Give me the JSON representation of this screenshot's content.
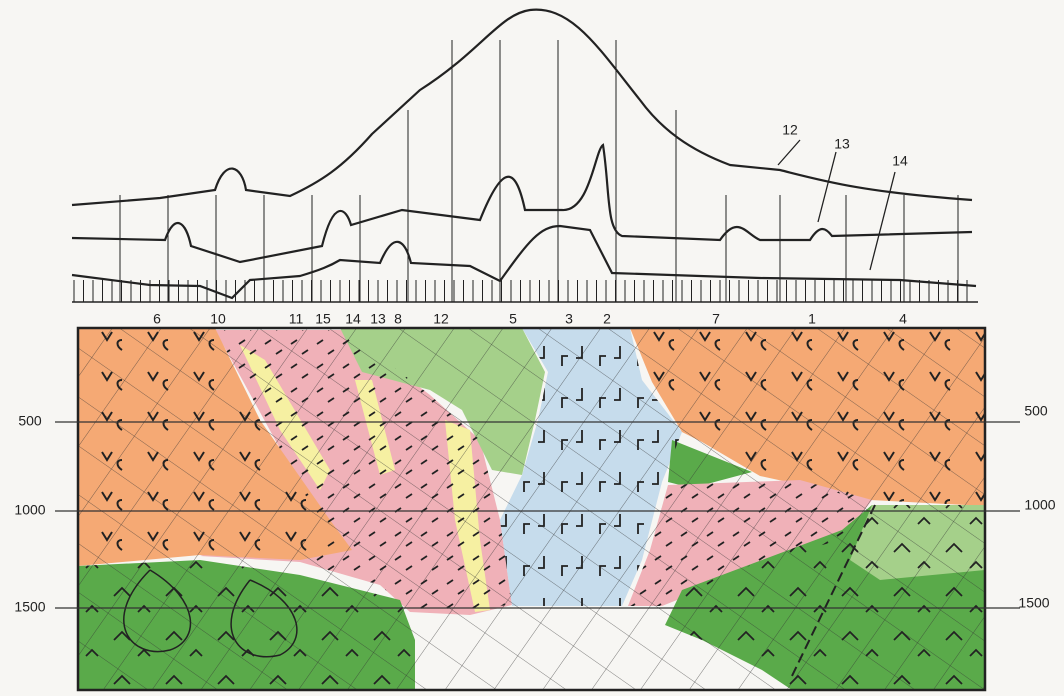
{
  "profile_labels": [
    "12",
    "13",
    "14"
  ],
  "section_labels": [
    "6",
    "10",
    "11",
    "15",
    "14",
    "13",
    "8",
    "12",
    "5",
    "3",
    "2",
    "7",
    "1",
    "4"
  ],
  "depth_labels_left": [
    "500",
    "1000",
    "1500"
  ],
  "depth_labels_right": [
    "500",
    "1000",
    "1500"
  ]
}
